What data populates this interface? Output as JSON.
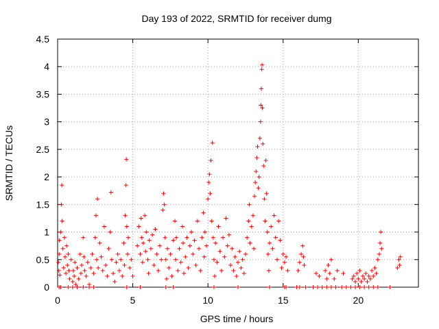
{
  "chart_data": {
    "type": "scatter",
    "title": "Day 193 of 2022, SRMTID for receiver dumg",
    "xlabel": "GPS time / hours",
    "ylabel": "SRMTID / TECUs",
    "xlim": [
      0,
      24
    ],
    "ylim": [
      0,
      4.5
    ],
    "xticks": [
      0,
      5,
      10,
      15,
      20
    ],
    "yticks": [
      0,
      0.5,
      1,
      1.5,
      2,
      2.5,
      3,
      3.5,
      4,
      4.5
    ],
    "xtick_labels": [
      "0",
      "5",
      "10",
      "15",
      "20"
    ],
    "ytick_labels": [
      "0",
      "0.5",
      "1",
      "1.5",
      "2",
      "2.5",
      "3",
      "3.5",
      "4",
      "4.5"
    ],
    "grid": true,
    "marker": "+",
    "series": [
      {
        "name": "SRMTID",
        "color": "#ff0000",
        "points": [
          [
            0.05,
            0.45
          ],
          [
            0.08,
            0.3
          ],
          [
            0.1,
            0.6
          ],
          [
            0.12,
            0.85
          ],
          [
            0.15,
            0.22
          ],
          [
            0.2,
            1.0
          ],
          [
            0.25,
            1.5
          ],
          [
            0.28,
            1.85
          ],
          [
            0.3,
            1.2
          ],
          [
            0.35,
            0.7
          ],
          [
            0.4,
            0.35
          ],
          [
            0.45,
            0.9
          ],
          [
            0.5,
            0.55
          ],
          [
            0.55,
            0.25
          ],
          [
            0.6,
            0.75
          ],
          [
            0.65,
            0.4
          ],
          [
            0.7,
            0.6
          ],
          [
            0.75,
            0.3
          ],
          [
            0.8,
            0.15
          ],
          [
            0.9,
            0.5
          ],
          [
            1.0,
            0.1
          ],
          [
            1.05,
            0.3
          ],
          [
            1.1,
            0.2
          ],
          [
            1.15,
            0.45
          ],
          [
            1.2,
            0.05
          ],
          [
            1.3,
            0.35
          ],
          [
            1.4,
            0.15
          ],
          [
            1.5,
            0.6
          ],
          [
            1.55,
            0.25
          ],
          [
            1.6,
            0.4
          ],
          [
            1.7,
            0.9
          ],
          [
            1.75,
            0.55
          ],
          [
            1.8,
            0.3
          ],
          [
            1.9,
            0.2
          ],
          [
            2.0,
            0.45
          ],
          [
            2.1,
            0.05
          ],
          [
            2.2,
            0.35
          ],
          [
            2.3,
            0.6
          ],
          [
            2.4,
            0.25
          ],
          [
            2.5,
            0.9
          ],
          [
            2.55,
            1.3
          ],
          [
            2.6,
            0.5
          ],
          [
            2.65,
            1.6
          ],
          [
            2.7,
            0.35
          ],
          [
            2.8,
            0.8
          ],
          [
            2.9,
            0.55
          ],
          [
            3.0,
            0.3
          ],
          [
            3.1,
            1.1
          ],
          [
            3.2,
            0.4
          ],
          [
            3.3,
            0.2
          ],
          [
            3.4,
            0.7
          ],
          [
            3.5,
            1.0
          ],
          [
            3.55,
            1.72
          ],
          [
            3.6,
            0.5
          ],
          [
            3.7,
            0.25
          ],
          [
            3.8,
            0.1
          ],
          [
            3.9,
            0.45
          ],
          [
            4.0,
            0.6
          ],
          [
            4.1,
            0.3
          ],
          [
            4.2,
            0.5
          ],
          [
            4.3,
            0.2
          ],
          [
            4.4,
            0.8
          ],
          [
            4.45,
            0.4
          ],
          [
            4.5,
            1.3
          ],
          [
            4.55,
            1.85
          ],
          [
            4.57,
            2.32
          ],
          [
            4.6,
            1.1
          ],
          [
            4.65,
            0.6
          ],
          [
            4.7,
            0.9
          ],
          [
            4.8,
            0.35
          ],
          [
            4.9,
            0.5
          ],
          [
            5.0,
            0.2
          ],
          [
            5.3,
            0.75
          ],
          [
            5.4,
            1.1
          ],
          [
            5.5,
            0.6
          ],
          [
            5.55,
            1.25
          ],
          [
            5.6,
            0.9
          ],
          [
            5.65,
            0.45
          ],
          [
            5.7,
            0.8
          ],
          [
            5.8,
            1.3
          ],
          [
            5.85,
            0.65
          ],
          [
            5.9,
            1.0
          ],
          [
            6.0,
            0.5
          ],
          [
            6.05,
            0.25
          ],
          [
            6.1,
            0.85
          ],
          [
            6.2,
            0.7
          ],
          [
            6.3,
            0.95
          ],
          [
            6.4,
            0.4
          ],
          [
            6.5,
            1.05
          ],
          [
            6.6,
            0.6
          ],
          [
            6.7,
            0.3
          ],
          [
            6.8,
            0.75
          ],
          [
            6.9,
            0.5
          ],
          [
            7.0,
            1.4
          ],
          [
            7.05,
            1.7
          ],
          [
            7.1,
            1.5
          ],
          [
            7.15,
            0.9
          ],
          [
            7.2,
            0.5
          ],
          [
            7.25,
            0.15
          ],
          [
            7.3,
            0.7
          ],
          [
            7.4,
            0.35
          ],
          [
            7.5,
            0.6
          ],
          [
            7.6,
            0.2
          ],
          [
            7.7,
            0.85
          ],
          [
            7.8,
            1.2
          ],
          [
            7.85,
            0.5
          ],
          [
            7.9,
            0.9
          ],
          [
            8.0,
            0.3
          ],
          [
            8.1,
            0.7
          ],
          [
            8.2,
            0.45
          ],
          [
            8.3,
            1.1
          ],
          [
            8.35,
            0.8
          ],
          [
            8.4,
            0.25
          ],
          [
            8.5,
            0.55
          ],
          [
            8.6,
            0.9
          ],
          [
            8.7,
            0.35
          ],
          [
            8.8,
            0.75
          ],
          [
            8.9,
            1.0
          ],
          [
            9.0,
            0.6
          ],
          [
            9.1,
            0.85
          ],
          [
            9.2,
            0.4
          ],
          [
            9.3,
            1.2
          ],
          [
            9.4,
            0.7
          ],
          [
            9.5,
            0.3
          ],
          [
            9.6,
            0.9
          ],
          [
            9.7,
            1.35
          ],
          [
            9.75,
            0.55
          ],
          [
            9.8,
            1.0
          ],
          [
            9.9,
            0.75
          ],
          [
            10.0,
            1.6
          ],
          [
            10.05,
            1.9
          ],
          [
            10.1,
            2.05
          ],
          [
            10.15,
            1.7
          ],
          [
            10.2,
            2.3
          ],
          [
            10.25,
            1.2
          ],
          [
            10.3,
            2.62
          ],
          [
            10.35,
            0.9
          ],
          [
            10.4,
            0.5
          ],
          [
            10.45,
            0.2
          ],
          [
            10.5,
            0.8
          ],
          [
            10.6,
            0.45
          ],
          [
            10.7,
            1.1
          ],
          [
            10.8,
            0.65
          ],
          [
            10.9,
            0.3
          ],
          [
            11.0,
            0.9
          ],
          [
            11.1,
            0.55
          ],
          [
            11.2,
            1.25
          ],
          [
            11.3,
            0.75
          ],
          [
            11.4,
            0.95
          ],
          [
            11.5,
            0.4
          ],
          [
            11.6,
            0.7
          ],
          [
            11.7,
            0.3
          ],
          [
            11.8,
            0.55
          ],
          [
            11.9,
            0.2
          ],
          [
            12.0,
            0.45
          ],
          [
            12.1,
            0.65
          ],
          [
            12.2,
            0.35
          ],
          [
            12.3,
            0.5
          ],
          [
            12.4,
            0.25
          ],
          [
            12.5,
            0.6
          ],
          [
            12.6,
            0.9
          ],
          [
            12.7,
            1.2
          ],
          [
            12.75,
            1.5
          ],
          [
            12.8,
            0.8
          ],
          [
            12.9,
            1.1
          ],
          [
            13.0,
            1.3
          ],
          [
            13.05,
            0.7
          ],
          [
            13.1,
            1.65
          ],
          [
            13.15,
            1.9
          ],
          [
            13.2,
            2.1
          ],
          [
            13.25,
            2.35
          ],
          [
            13.3,
            2.55
          ],
          [
            13.35,
            1.8
          ],
          [
            13.4,
            2.0
          ],
          [
            13.45,
            2.7
          ],
          [
            13.5,
            3.0
          ],
          [
            13.52,
            3.3
          ],
          [
            13.55,
            3.6
          ],
          [
            13.58,
            3.95
          ],
          [
            13.6,
            4.03
          ],
          [
            13.62,
            3.25
          ],
          [
            13.65,
            2.6
          ],
          [
            13.7,
            2.2
          ],
          [
            13.75,
            1.6
          ],
          [
            13.8,
            1.2
          ],
          [
            13.85,
            2.3
          ],
          [
            13.9,
            1.7
          ],
          [
            13.95,
            1.0
          ],
          [
            14.0,
            0.6
          ],
          [
            14.05,
            0.3
          ],
          [
            14.1,
            0.8
          ],
          [
            14.2,
            1.1
          ],
          [
            14.3,
            0.7
          ],
          [
            14.4,
            1.3
          ],
          [
            14.5,
            0.9
          ],
          [
            14.6,
            0.5
          ],
          [
            14.7,
            1.2
          ],
          [
            14.8,
            0.85
          ],
          [
            14.9,
            0.35
          ],
          [
            15.0,
            0.6
          ],
          [
            15.1,
            0.45
          ],
          [
            15.2,
            0.55
          ],
          [
            15.3,
            0.3
          ],
          [
            16.0,
            0.3
          ],
          [
            16.1,
            0.45
          ],
          [
            16.2,
            0.6
          ],
          [
            16.3,
            0.75
          ],
          [
            16.35,
            0.55
          ],
          [
            16.4,
            0.4
          ],
          [
            17.2,
            0.25
          ],
          [
            17.4,
            0.2
          ],
          [
            17.8,
            0.3
          ],
          [
            17.9,
            0.15
          ],
          [
            18.0,
            0.4
          ],
          [
            18.1,
            0.25
          ],
          [
            18.2,
            0.5
          ],
          [
            18.4,
            0.15
          ],
          [
            18.6,
            0.3
          ],
          [
            19.0,
            0.25
          ],
          [
            19.6,
            0.15
          ],
          [
            19.7,
            0.2
          ],
          [
            19.8,
            0.1
          ],
          [
            19.9,
            0.25
          ],
          [
            20.0,
            0.15
          ],
          [
            20.1,
            0.3
          ],
          [
            20.2,
            0.1
          ],
          [
            20.3,
            0.2
          ],
          [
            20.4,
            0.15
          ],
          [
            20.5,
            0.25
          ],
          [
            20.6,
            0.1
          ],
          [
            20.7,
            0.2
          ],
          [
            20.8,
            0.15
          ],
          [
            20.9,
            0.3
          ],
          [
            21.0,
            0.2
          ],
          [
            21.1,
            0.35
          ],
          [
            21.2,
            0.25
          ],
          [
            21.3,
            0.5
          ],
          [
            21.4,
            0.6
          ],
          [
            21.45,
            0.8
          ],
          [
            21.5,
            1.0
          ],
          [
            21.55,
            0.7
          ],
          [
            22.6,
            0.35
          ],
          [
            22.7,
            0.5
          ],
          [
            22.75,
            0.4
          ],
          [
            22.8,
            0.55
          ],
          [
            0.1,
            0.0
          ],
          [
            0.2,
            0.0
          ],
          [
            0.7,
            0.0
          ],
          [
            1.0,
            0.0
          ],
          [
            1.3,
            0.0
          ],
          [
            1.7,
            0.0
          ],
          [
            2.1,
            0.0
          ],
          [
            2.4,
            0.0
          ],
          [
            4.6,
            0.0
          ],
          [
            5.5,
            0.0
          ],
          [
            7.2,
            0.0
          ],
          [
            7.7,
            0.0
          ],
          [
            10.4,
            0.0
          ],
          [
            12.0,
            0.0
          ],
          [
            14.1,
            0.0
          ],
          [
            15.1,
            0.0
          ],
          [
            15.2,
            0.0
          ],
          [
            15.9,
            0.0
          ],
          [
            16.1,
            0.0
          ],
          [
            16.5,
            0.0
          ],
          [
            17.0,
            0.0
          ],
          [
            17.3,
            0.0
          ],
          [
            17.6,
            0.0
          ],
          [
            17.9,
            0.0
          ],
          [
            18.2,
            0.0
          ],
          [
            18.5,
            0.0
          ],
          [
            18.9,
            0.0
          ],
          [
            19.2,
            0.0
          ],
          [
            19.5,
            0.0
          ],
          [
            19.8,
            0.0
          ],
          [
            20.1,
            0.0
          ],
          [
            20.4,
            0.0
          ],
          [
            20.7,
            0.0
          ],
          [
            21.0,
            0.0
          ],
          [
            21.3,
            0.0
          ],
          [
            22.1,
            0.0
          ]
        ]
      }
    ]
  }
}
